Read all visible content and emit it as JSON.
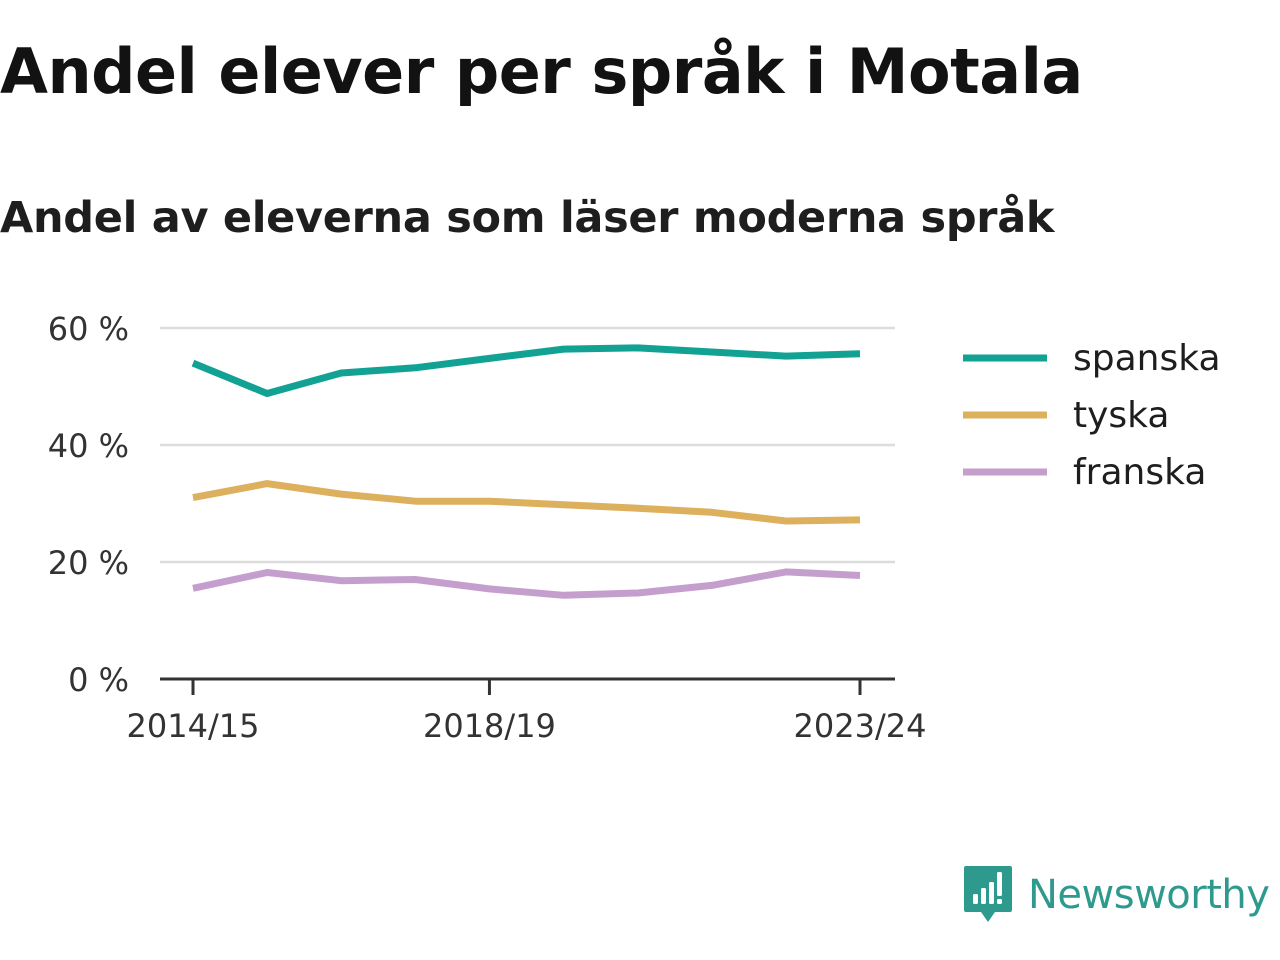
{
  "title": "Andel elever per språk i Motala",
  "subtitle": "Andel av eleverna som läser moderna språk",
  "brand": {
    "name": "Newsworthy",
    "icon": "newsworthy-logo-icon",
    "color": "#2e9a8e"
  },
  "chart_data": {
    "type": "line",
    "title": "Andel elever per språk i Motala",
    "subtitle": "Andel av eleverna som läser moderna språk",
    "x": [
      "2014/15",
      "2015/16",
      "2016/17",
      "2017/18",
      "2018/19",
      "2019/20",
      "2020/21",
      "2021/22",
      "2022/23",
      "2023/24"
    ],
    "x_tick_labels": [
      "2014/15",
      "2018/19",
      "2023/24"
    ],
    "y_ticks": [
      0,
      20,
      40,
      60
    ],
    "y_tick_labels": [
      "0 %",
      "20 %",
      "40 %",
      "60 %"
    ],
    "ylim": [
      0,
      60
    ],
    "grid": true,
    "legend_position": "right",
    "series": [
      {
        "name": "spanska",
        "color": "#12a293",
        "values": [
          54.0,
          48.8,
          52.3,
          53.2,
          54.8,
          56.4,
          56.6,
          55.9,
          55.2,
          55.6
        ]
      },
      {
        "name": "tyska",
        "color": "#dcb05d",
        "values": [
          31.0,
          33.4,
          31.6,
          30.4,
          30.4,
          29.8,
          29.2,
          28.5,
          27.0,
          27.2
        ]
      },
      {
        "name": "franska",
        "color": "#c49fce",
        "values": [
          15.5,
          18.2,
          16.8,
          17.0,
          15.4,
          14.3,
          14.7,
          16.0,
          18.3,
          17.7
        ]
      }
    ]
  }
}
